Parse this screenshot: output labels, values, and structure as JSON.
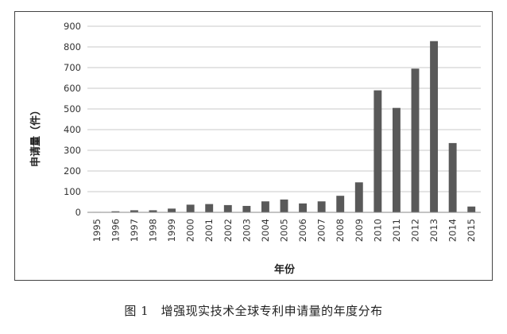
{
  "chart_data": {
    "type": "bar",
    "categories": [
      "1995",
      "1996",
      "1997",
      "1998",
      "1999",
      "2000",
      "2001",
      "2002",
      "2003",
      "2004",
      "2005",
      "2006",
      "2007",
      "2008",
      "2009",
      "2010",
      "2011",
      "2012",
      "2013",
      "2014",
      "2015"
    ],
    "values": [
      2,
      5,
      10,
      10,
      18,
      37,
      40,
      35,
      31,
      53,
      62,
      43,
      53,
      80,
      145,
      590,
      505,
      695,
      828,
      335,
      28
    ],
    "title": "",
    "xlabel": "年份",
    "ylabel": "申请量（件）",
    "ylim": [
      0,
      900
    ],
    "yticks": [
      0,
      100,
      200,
      300,
      400,
      500,
      600,
      700,
      800,
      900
    ],
    "grid": true,
    "bar_color": "#595959",
    "grid_color": "#c8c8c8"
  },
  "caption": "图 1　增强现实技术全球专利申请量的年度分布"
}
